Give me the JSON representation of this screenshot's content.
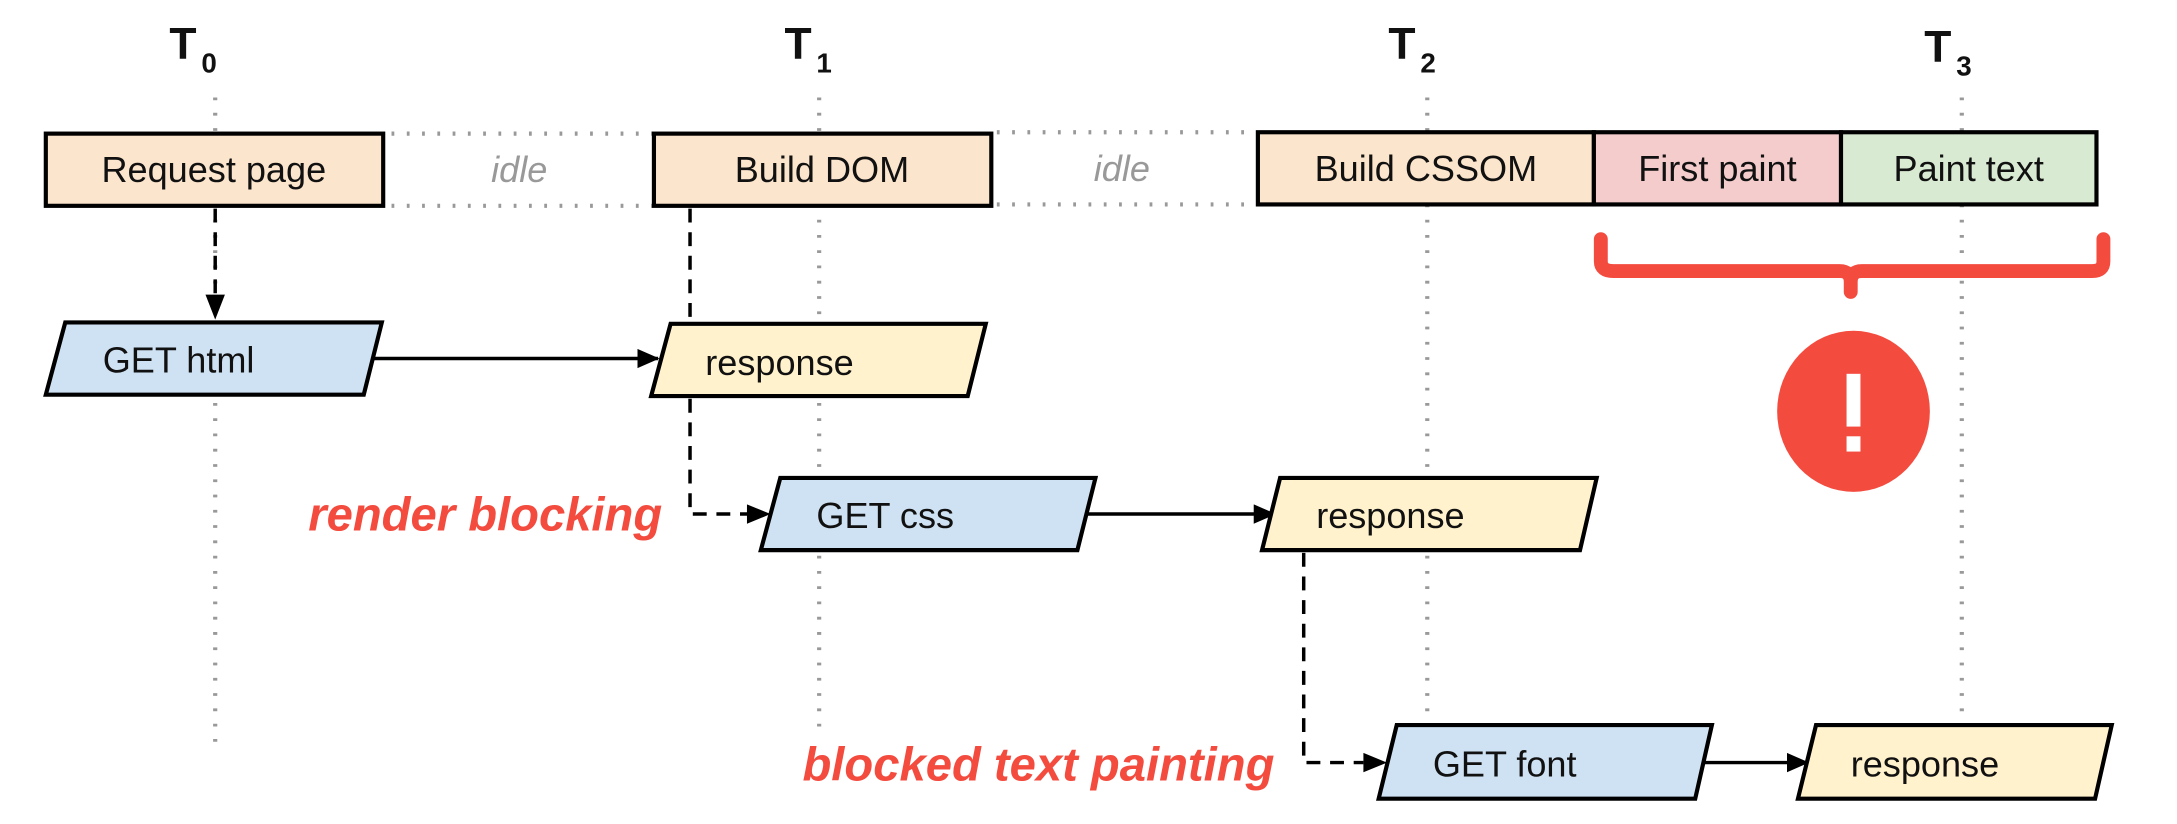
{
  "colors": {
    "task": "#fce5cd",
    "first_paint": "#f4cccc",
    "paint_text": "#d9ead3",
    "request": "#cfe2f3",
    "response": "#fff2cc",
    "warning": "#f44b3f",
    "idle": "#999999"
  },
  "timeline": [
    {
      "label": "T",
      "sub": "0"
    },
    {
      "label": "T",
      "sub": "1"
    },
    {
      "label": "T",
      "sub": "2"
    },
    {
      "label": "T",
      "sub": "3"
    }
  ],
  "tasks": {
    "request_page": "Request page",
    "idle1": "idle",
    "build_dom": "Build DOM",
    "idle2": "idle",
    "build_cssom": "Build CSSOM",
    "first_paint": "First paint",
    "paint_text": "Paint text"
  },
  "network": {
    "get_html": "GET html",
    "response_html": "response",
    "get_css": "GET css",
    "response_css": "response",
    "get_font": "GET font",
    "response_font": "response"
  },
  "annotations": {
    "render_blocking": "render blocking",
    "blocked_text": "blocked text painting",
    "warning_icon": "exclamation-icon",
    "warning_mark": "!"
  }
}
